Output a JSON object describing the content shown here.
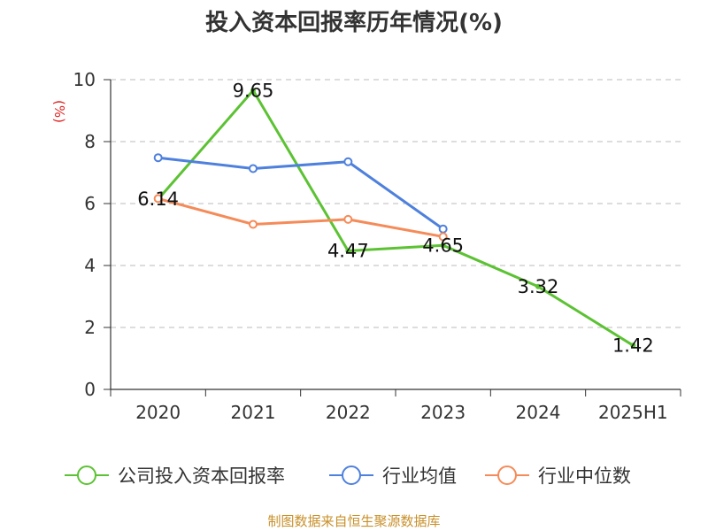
{
  "chart_data": {
    "type": "line",
    "title": "投入资本回报率历年情况(%)",
    "unit_label": "(%)",
    "categories": [
      "2020",
      "2021",
      "2022",
      "2023",
      "2024",
      "2025H1"
    ],
    "yticks": [
      "0",
      "2",
      "4",
      "6",
      "8",
      "10"
    ],
    "ylim": [
      0,
      10
    ],
    "grid": true,
    "legend_position": "bottom",
    "series": [
      {
        "name": "公司投入资本回报率",
        "color": "#5cc233",
        "values": [
          6.14,
          9.65,
          4.47,
          4.65,
          3.32,
          1.42
        ],
        "labels": [
          "6.14",
          "9.65",
          "4.47",
          "4.65",
          "3.32",
          "1.42"
        ]
      },
      {
        "name": "行业均值",
        "color": "#4e80dd",
        "values": [
          7.48,
          7.13,
          7.35,
          5.18,
          null,
          null
        ]
      },
      {
        "name": "行业中位数",
        "color": "#f58b59",
        "values": [
          6.16,
          5.33,
          5.49,
          4.93,
          null,
          null
        ]
      }
    ],
    "source": "制图数据来自恒生聚源数据库"
  }
}
